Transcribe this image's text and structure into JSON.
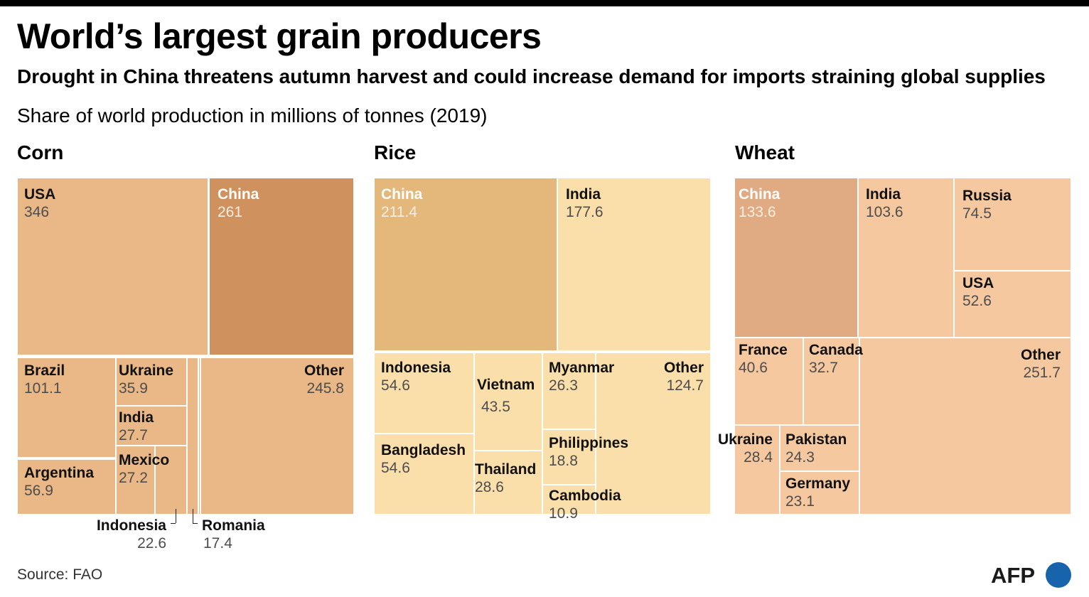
{
  "title": "World’s largest grain producers",
  "subtitle": "Drought in China threatens autumn harvest and could increase demand for imports straining global supplies",
  "caption": "Share of world  production in millions of tonnes (2019)",
  "source": "Source: FAO",
  "logo": "AFP",
  "colors": {
    "corn": "#e9b886",
    "corn_china": "#cf925e",
    "rice": "#fbdfaa",
    "rice_china": "#e3b87a",
    "wheat": "#f6c8a0",
    "wheat_china": "#e0aa82",
    "afp_blue": "#1764ad"
  },
  "chart_data": [
    {
      "type": "treemap",
      "title": "Corn",
      "unit": "millions of tonnes",
      "items": [
        {
          "name": "USA",
          "value": 346
        },
        {
          "name": "China",
          "value": 261
        },
        {
          "name": "Brazil",
          "value": 101.1
        },
        {
          "name": "Argentina",
          "value": 56.9
        },
        {
          "name": "Ukraine",
          "value": 35.9
        },
        {
          "name": "India",
          "value": 27.7
        },
        {
          "name": "Mexico",
          "value": 27.2
        },
        {
          "name": "Indonesia",
          "value": 22.6
        },
        {
          "name": "Romania",
          "value": 17.4
        },
        {
          "name": "Other",
          "value": 245.8
        }
      ]
    },
    {
      "type": "treemap",
      "title": "Rice",
      "unit": "millions of tonnes",
      "items": [
        {
          "name": "China",
          "value": 211.4
        },
        {
          "name": "India",
          "value": 177.6
        },
        {
          "name": "Indonesia",
          "value": 54.6
        },
        {
          "name": "Bangladesh",
          "value": 54.6
        },
        {
          "name": "Vietnam",
          "value": 43.5
        },
        {
          "name": "Thailand",
          "value": 28.6
        },
        {
          "name": "Myanmar",
          "value": 26.3
        },
        {
          "name": "Philippines",
          "value": 18.8
        },
        {
          "name": "Cambodia",
          "value": 10.9
        },
        {
          "name": "Other",
          "value": 124.7
        }
      ]
    },
    {
      "type": "treemap",
      "title": "Wheat",
      "unit": "millions of tonnes",
      "items": [
        {
          "name": "China",
          "value": 133.6
        },
        {
          "name": "India",
          "value": 103.6
        },
        {
          "name": "Russia",
          "value": 74.5
        },
        {
          "name": "USA",
          "value": 52.6
        },
        {
          "name": "France",
          "value": 40.6
        },
        {
          "name": "Canada",
          "value": 32.7
        },
        {
          "name": "Ukraine",
          "value": 28.4
        },
        {
          "name": "Pakistan",
          "value": 24.3
        },
        {
          "name": "Germany",
          "value": 23.1
        },
        {
          "name": "Other",
          "value": 251.7
        }
      ]
    }
  ]
}
